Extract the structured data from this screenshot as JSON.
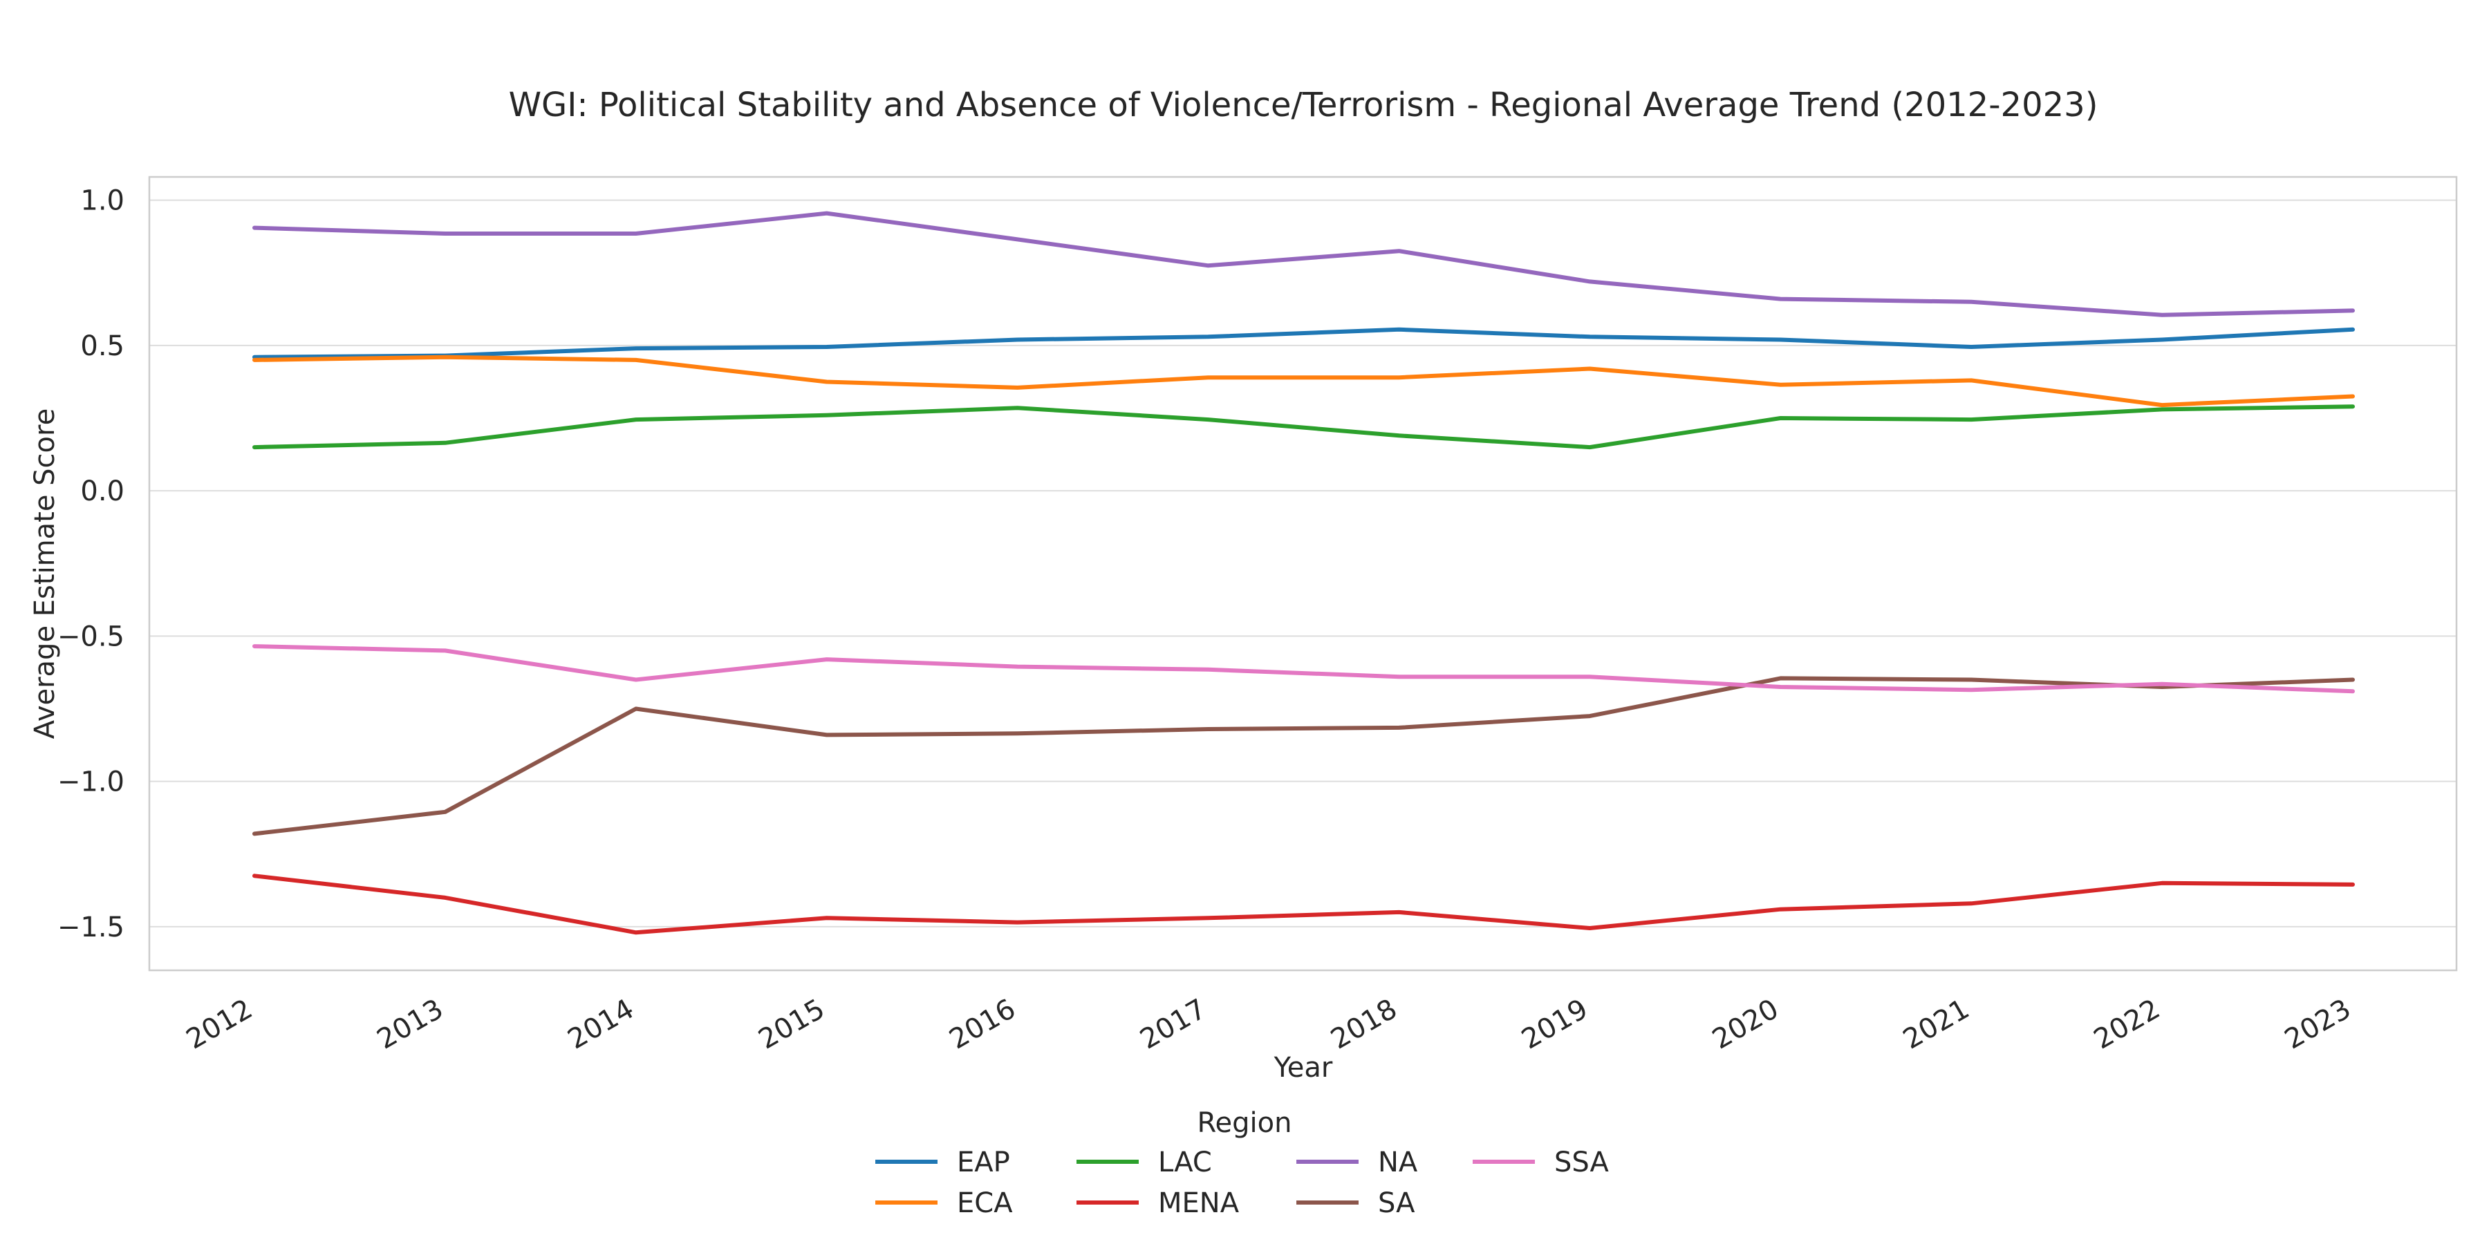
{
  "chart_data": {
    "type": "line",
    "title": "WGI: Political Stability and Absence of Violence/Terrorism - Regional Average Trend (2012-2023)",
    "xlabel": "Year",
    "ylabel": "Average Estimate Score",
    "x": [
      "2012",
      "2013",
      "2014",
      "2015",
      "2016",
      "2017",
      "2018",
      "2019",
      "2020",
      "2021",
      "2022",
      "2023"
    ],
    "y_ticks": [
      1.0,
      0.5,
      0.0,
      -0.5,
      -1.0,
      -1.5
    ],
    "y_tick_labels": [
      "1.0",
      "0.5",
      "0.0",
      "−0.5",
      "−1.0",
      "−1.5"
    ],
    "ylim": [
      -1.65,
      1.08
    ],
    "grid": true,
    "legend": {
      "title": "Region",
      "position": "bottom-center",
      "columns": 4
    },
    "series": [
      {
        "name": "EAP",
        "color": "#1f77b4",
        "values": [
          0.46,
          0.465,
          0.49,
          0.495,
          0.52,
          0.53,
          0.555,
          0.53,
          0.52,
          0.495,
          0.52,
          0.555
        ]
      },
      {
        "name": "ECA",
        "color": "#ff7f0e",
        "values": [
          0.45,
          0.46,
          0.45,
          0.375,
          0.355,
          0.39,
          0.39,
          0.42,
          0.365,
          0.38,
          0.295,
          0.325
        ]
      },
      {
        "name": "LAC",
        "color": "#2ca02c",
        "values": [
          0.15,
          0.165,
          0.245,
          0.26,
          0.285,
          0.245,
          0.19,
          0.15,
          0.25,
          0.245,
          0.28,
          0.29
        ]
      },
      {
        "name": "MENA",
        "color": "#d62728",
        "values": [
          -1.325,
          -1.4,
          -1.52,
          -1.47,
          -1.485,
          -1.47,
          -1.45,
          -1.505,
          -1.44,
          -1.42,
          -1.35,
          -1.355
        ]
      },
      {
        "name": "NA",
        "color": "#9467bd",
        "values": [
          0.905,
          0.885,
          0.885,
          0.955,
          0.865,
          0.775,
          0.825,
          0.72,
          0.66,
          0.65,
          0.605,
          0.62
        ]
      },
      {
        "name": "SA",
        "color": "#8c564b",
        "values": [
          -1.18,
          -1.105,
          -0.75,
          -0.84,
          -0.835,
          -0.82,
          -0.815,
          -0.775,
          -0.645,
          -0.65,
          -0.675,
          -0.65
        ]
      },
      {
        "name": "SSA",
        "color": "#e377c2",
        "values": [
          -0.535,
          -0.55,
          -0.65,
          -0.58,
          -0.605,
          -0.615,
          -0.64,
          -0.64,
          -0.675,
          -0.685,
          -0.665,
          -0.69
        ]
      }
    ]
  }
}
